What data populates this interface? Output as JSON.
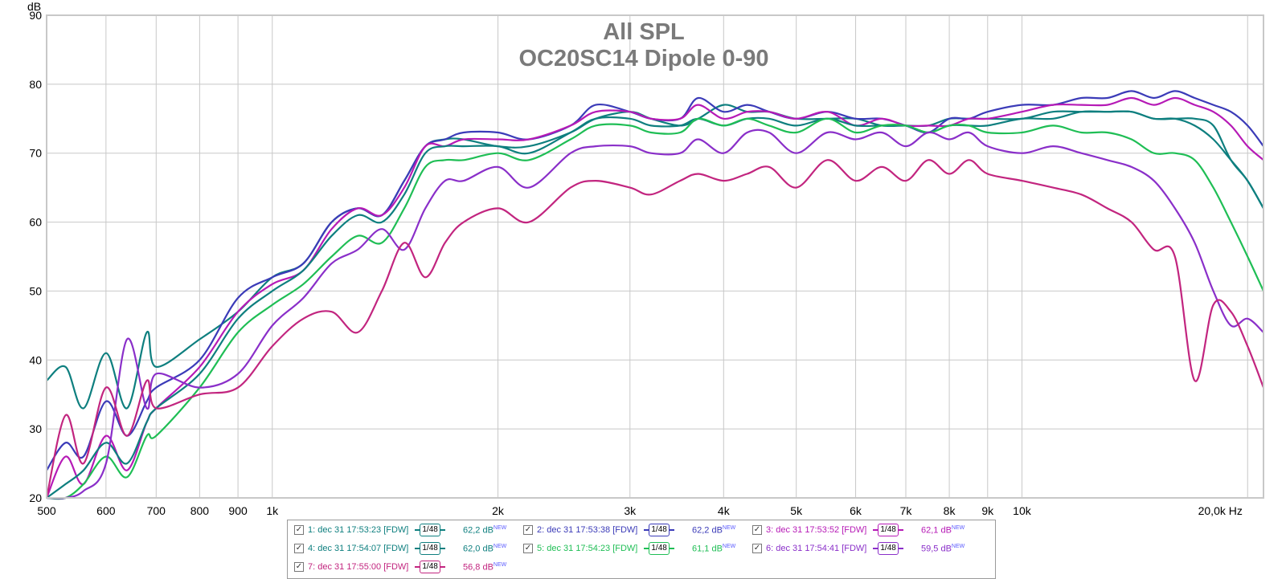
{
  "chart_data": {
    "type": "line",
    "title": "All SPL",
    "subtitle": "OC20SC14 Dipole 0-90",
    "ylabel": "dB",
    "xlabel": "Hz",
    "x_scale": "log",
    "xlim": [
      500,
      21000
    ],
    "ylim": [
      20,
      90
    ],
    "x_ticks": [
      {
        "value": 500,
        "label": "500"
      },
      {
        "value": 600,
        "label": "600"
      },
      {
        "value": 700,
        "label": "700"
      },
      {
        "value": 800,
        "label": "800"
      },
      {
        "value": 900,
        "label": "900"
      },
      {
        "value": 1000,
        "label": "1k"
      },
      {
        "value": 2000,
        "label": "2k"
      },
      {
        "value": 3000,
        "label": "3k"
      },
      {
        "value": 4000,
        "label": "4k"
      },
      {
        "value": 5000,
        "label": "5k"
      },
      {
        "value": 6000,
        "label": "6k"
      },
      {
        "value": 7000,
        "label": "7k"
      },
      {
        "value": 8000,
        "label": "8k"
      },
      {
        "value": 9000,
        "label": "9k"
      },
      {
        "value": 10000,
        "label": "10k"
      },
      {
        "value": 20000,
        "label": "20,0k Hz"
      }
    ],
    "y_ticks": [
      20,
      30,
      40,
      50,
      60,
      70,
      80,
      90
    ],
    "grid": true,
    "legend_position": "bottom-center",
    "series": [
      {
        "name": "1: dec 31 17:53:23 [FDW]",
        "color": "#0e7f7f",
        "smoothing": "1/48",
        "level": "62,2 dB",
        "x": [
          500,
          530,
          560,
          600,
          640,
          680,
          700,
          800,
          900,
          1000,
          1100,
          1200,
          1300,
          1400,
          1500,
          1600,
          1700,
          1800,
          2000,
          2200,
          2500,
          2700,
          3000,
          3200,
          3500,
          3700,
          4000,
          4300,
          4600,
          5000,
          5500,
          6000,
          6500,
          7000,
          7500,
          8000,
          8500,
          9000,
          10000,
          11000,
          12000,
          13000,
          14000,
          15000,
          16000,
          17000,
          18000,
          19000,
          20000,
          21000
        ],
        "y": [
          37,
          39,
          33,
          41,
          33,
          44,
          39,
          43,
          47,
          52,
          54,
          60,
          62,
          61,
          66,
          71,
          72,
          72,
          71,
          71,
          73,
          75,
          76,
          75,
          74,
          75,
          77,
          76,
          76,
          75,
          75,
          75,
          74,
          74,
          74,
          75,
          75,
          75,
          75,
          76,
          76,
          76,
          76,
          75,
          75,
          75,
          74,
          69,
          66,
          62
        ]
      },
      {
        "name": "2: dec 31 17:53:38 [FDW]",
        "color": "#3b3bb8",
        "smoothing": "1/48",
        "level": "62,2 dB",
        "x": [
          500,
          530,
          560,
          600,
          640,
          680,
          700,
          800,
          900,
          1000,
          1100,
          1200,
          1300,
          1400,
          1500,
          1600,
          1700,
          1800,
          2000,
          2200,
          2500,
          2700,
          3000,
          3200,
          3500,
          3700,
          4000,
          4300,
          4600,
          5000,
          5500,
          6000,
          6500,
          7000,
          7500,
          8000,
          8500,
          9000,
          10000,
          11000,
          12000,
          13000,
          14000,
          15000,
          16000,
          17000,
          18000,
          19000,
          20000,
          21000
        ],
        "y": [
          24,
          28,
          26,
          34,
          29,
          34,
          36,
          40,
          49,
          52,
          54,
          60,
          62,
          61,
          66,
          71,
          72,
          73,
          73,
          72,
          74,
          77,
          76,
          75,
          75,
          78,
          76,
          77,
          76,
          75,
          76,
          75,
          75,
          74,
          73,
          75,
          75,
          76,
          77,
          77,
          78,
          78,
          79,
          78,
          79,
          78,
          77,
          76,
          74,
          71
        ]
      },
      {
        "name": "3: dec 31 17:53:52 [FDW]",
        "color": "#b61ab6",
        "smoothing": "1/48",
        "level": "62,1 dB",
        "x": [
          500,
          530,
          560,
          600,
          640,
          680,
          700,
          800,
          900,
          1000,
          1100,
          1200,
          1300,
          1400,
          1500,
          1600,
          1700,
          1800,
          2000,
          2200,
          2500,
          2700,
          3000,
          3200,
          3500,
          3700,
          4000,
          4300,
          4600,
          5000,
          5500,
          6000,
          6500,
          7000,
          7500,
          8000,
          8500,
          9000,
          10000,
          11000,
          12000,
          13000,
          14000,
          15000,
          16000,
          17000,
          18000,
          19000,
          20000,
          21000
        ],
        "y": [
          20,
          26,
          22,
          29,
          24,
          31,
          33,
          39,
          47,
          51,
          53,
          59,
          62,
          61,
          65,
          71,
          71,
          72,
          72,
          72,
          74,
          76,
          76,
          75,
          75,
          77,
          75,
          76,
          76,
          75,
          76,
          74,
          75,
          74,
          74,
          74,
          75,
          75,
          76,
          77,
          77,
          77,
          78,
          77,
          78,
          77,
          76,
          74,
          71,
          69
        ]
      },
      {
        "name": "4: dec 31 17:54:07 [FDW]",
        "color": "#0e7f7f",
        "smoothing": "1/48",
        "level": "62,0 dB",
        "x": [
          500,
          530,
          560,
          600,
          640,
          680,
          700,
          800,
          900,
          1000,
          1100,
          1200,
          1300,
          1400,
          1500,
          1600,
          1700,
          1800,
          2000,
          2200,
          2500,
          2700,
          3000,
          3200,
          3500,
          3700,
          4000,
          4300,
          4600,
          5000,
          5500,
          6000,
          6500,
          7000,
          7500,
          8000,
          8500,
          9000,
          10000,
          11000,
          12000,
          13000,
          14000,
          15000,
          16000,
          17000,
          18000,
          19000,
          20000,
          21000
        ],
        "y": [
          20,
          22,
          24,
          28,
          25,
          31,
          33,
          38,
          46,
          50,
          53,
          58,
          61,
          60,
          64,
          70,
          71,
          71,
          71,
          70,
          73,
          75,
          75,
          74,
          74,
          75,
          74,
          75,
          75,
          74,
          75,
          74,
          74,
          74,
          73,
          74,
          74,
          74,
          75,
          75,
          76,
          76,
          76,
          75,
          75,
          74,
          72,
          69,
          66,
          62
        ]
      },
      {
        "name": "5: dec 31 17:54:23 [FDW]",
        "color": "#1fbe55",
        "smoothing": "1/48",
        "level": "61,1 dB",
        "x": [
          500,
          530,
          560,
          600,
          640,
          680,
          700,
          800,
          900,
          1000,
          1100,
          1200,
          1300,
          1400,
          1500,
          1600,
          1700,
          1800,
          2000,
          2200,
          2500,
          2700,
          3000,
          3200,
          3500,
          3700,
          4000,
          4300,
          4600,
          5000,
          5500,
          6000,
          6500,
          7000,
          7500,
          8000,
          8500,
          9000,
          10000,
          11000,
          12000,
          13000,
          14000,
          15000,
          16000,
          17000,
          18000,
          19000,
          20000,
          21000
        ],
        "y": [
          20,
          20,
          22,
          26,
          23,
          29,
          29,
          36,
          44,
          48,
          51,
          55,
          58,
          57,
          62,
          68,
          69,
          69,
          70,
          69,
          72,
          74,
          74,
          73,
          73,
          75,
          74,
          75,
          74,
          73,
          75,
          73,
          74,
          74,
          73,
          74,
          74,
          73,
          73,
          74,
          73,
          73,
          72,
          70,
          70,
          69,
          65,
          60,
          55,
          50
        ]
      },
      {
        "name": "6: dec 31 17:54:41 [FDW]",
        "color": "#8a2fc9",
        "smoothing": "1/48",
        "level": "59,5 dB",
        "x": [
          500,
          530,
          560,
          600,
          640,
          680,
          700,
          800,
          900,
          1000,
          1100,
          1200,
          1300,
          1400,
          1500,
          1600,
          1700,
          1800,
          2000,
          2200,
          2500,
          2700,
          3000,
          3200,
          3500,
          3700,
          4000,
          4300,
          4600,
          5000,
          5500,
          6000,
          6500,
          7000,
          7500,
          8000,
          8500,
          9000,
          10000,
          11000,
          12000,
          13000,
          14000,
          15000,
          16000,
          17000,
          18000,
          19000,
          20000,
          21000
        ],
        "y": [
          20,
          20,
          21,
          25,
          43,
          33,
          38,
          36,
          38,
          45,
          49,
          54,
          56,
          59,
          56,
          62,
          66,
          66,
          68,
          65,
          70,
          71,
          71,
          70,
          70,
          72,
          70,
          73,
          73,
          70,
          73,
          72,
          73,
          71,
          73,
          72,
          73,
          71,
          70,
          71,
          70,
          69,
          68,
          66,
          62,
          57,
          50,
          45,
          46,
          44
        ]
      },
      {
        "name": "7: dec 31 17:55:00 [FDW]",
        "color": "#c2257f",
        "smoothing": "1/48",
        "level": "56,8 dB",
        "x": [
          500,
          530,
          560,
          600,
          640,
          680,
          700,
          800,
          900,
          1000,
          1100,
          1200,
          1300,
          1400,
          1500,
          1600,
          1700,
          1800,
          2000,
          2200,
          2500,
          2700,
          3000,
          3200,
          3500,
          3700,
          4000,
          4300,
          4600,
          5000,
          5500,
          6000,
          6500,
          7000,
          7500,
          8000,
          8500,
          9000,
          10000,
          11000,
          12000,
          13000,
          14000,
          15000,
          16000,
          17000,
          18000,
          19000,
          20000,
          21000
        ],
        "y": [
          20,
          32,
          25,
          36,
          29,
          37,
          33,
          35,
          36,
          42,
          46,
          47,
          44,
          50,
          57,
          52,
          57,
          60,
          62,
          60,
          65,
          66,
          65,
          64,
          66,
          67,
          66,
          67,
          68,
          65,
          69,
          66,
          68,
          66,
          69,
          67,
          69,
          67,
          66,
          65,
          64,
          62,
          60,
          56,
          55,
          37,
          48,
          47,
          42,
          36
        ]
      }
    ]
  },
  "legend": {
    "check_mark": "✓",
    "smoothing_label": "1/48",
    "new_tag": "NEW"
  }
}
